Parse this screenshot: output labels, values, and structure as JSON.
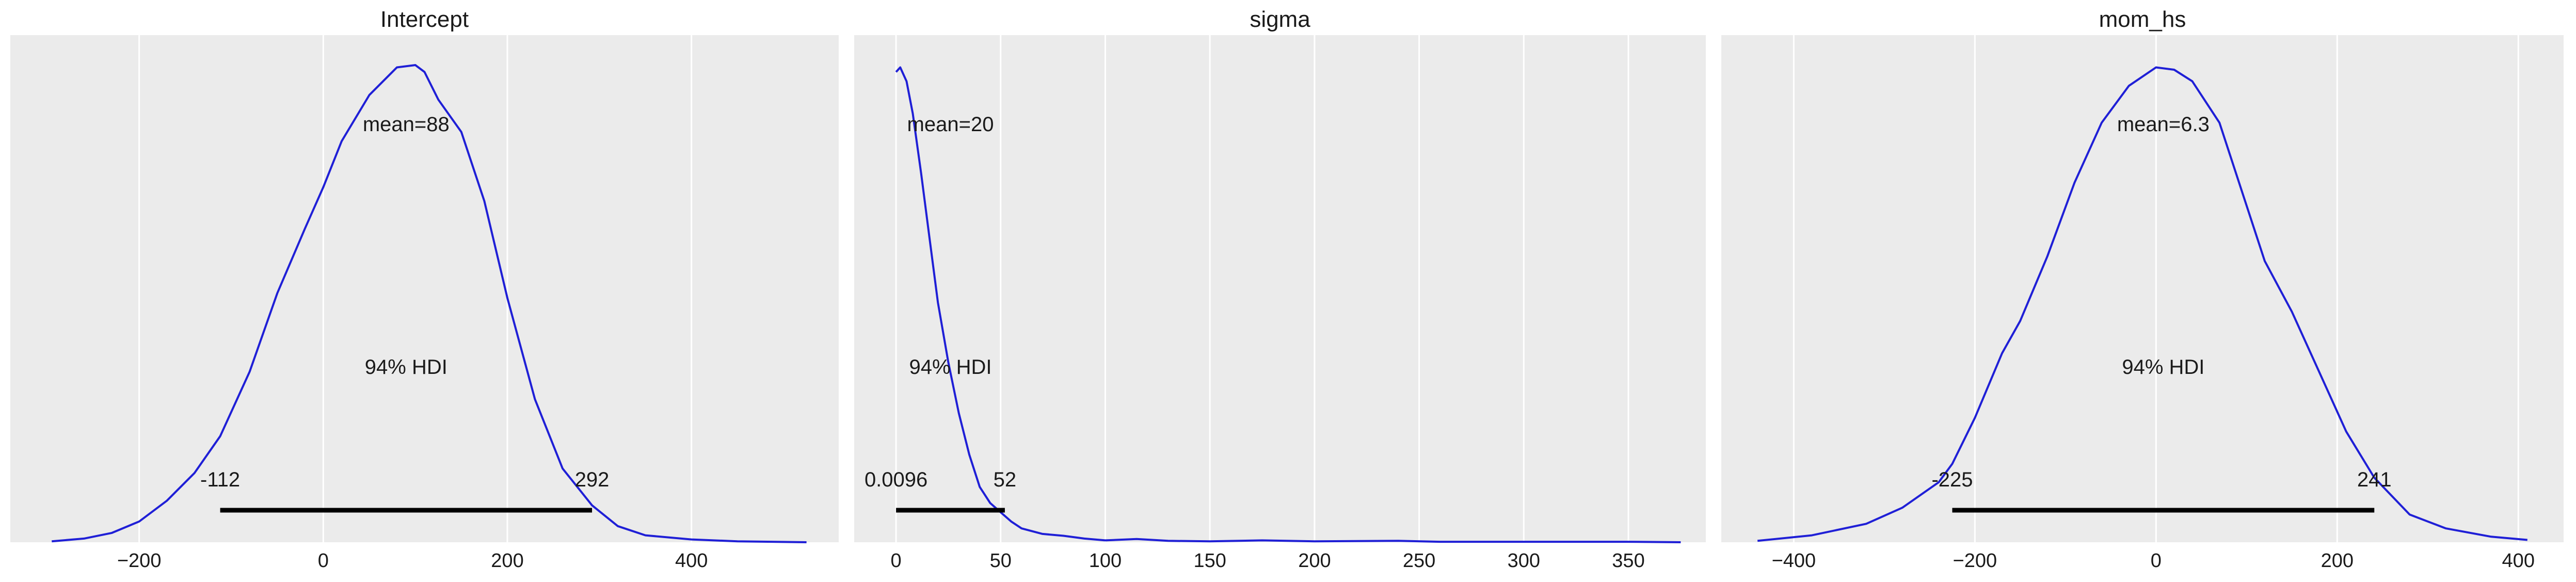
{
  "colors": {
    "panel_bg": "#ebebeb",
    "grid": "#ffffff",
    "density_line": "#1f1fd6",
    "hdi_bar": "#000000",
    "text": "#1a1a1a"
  },
  "chart_data": [
    {
      "type": "line",
      "title": "Intercept",
      "xlabel": "",
      "ylabel": "",
      "grid": true,
      "xlim": [
        -340,
        560
      ],
      "xticks": [
        -200,
        0,
        200,
        400
      ],
      "tick_labels": [
        "−200",
        "0",
        "200",
        "400"
      ],
      "mean_label": "mean=88",
      "hdi_label": "94% HDI",
      "hdi": [
        -112,
        292
      ],
      "hdi_low_label": "-112",
      "hdi_high_label": "292",
      "ylim": [
        0,
        1.1
      ],
      "density": {
        "x": [
          -295,
          -260,
          -230,
          -200,
          -170,
          -140,
          -112,
          -80,
          -50,
          -20,
          0,
          20,
          50,
          80,
          100,
          110,
          125,
          150,
          175,
          200,
          230,
          260,
          292,
          320,
          350,
          400,
          450,
          525
        ],
        "y": [
          0.002,
          0.008,
          0.02,
          0.045,
          0.09,
          0.15,
          0.23,
          0.37,
          0.54,
          0.68,
          0.77,
          0.87,
          0.97,
          1.03,
          1.035,
          1.02,
          0.96,
          0.89,
          0.74,
          0.53,
          0.31,
          0.16,
          0.08,
          0.035,
          0.015,
          0.006,
          0.002,
          0.0
        ]
      }
    },
    {
      "type": "line",
      "title": "sigma",
      "xlabel": "",
      "ylabel": "",
      "grid": true,
      "xlim": [
        -20,
        387
      ],
      "xticks": [
        0,
        50,
        100,
        150,
        200,
        250,
        300,
        350
      ],
      "tick_labels": [
        "0",
        "50",
        "100",
        "150",
        "200",
        "250",
        "300",
        "350"
      ],
      "mean_label": "mean=20",
      "hdi_label": "94% HDI",
      "hdi": [
        0.0096,
        52
      ],
      "hdi_low_label": "0.0096",
      "hdi_high_label": "52",
      "ylim": [
        0,
        1.1
      ],
      "density": {
        "x": [
          0,
          2,
          5,
          8,
          12,
          16,
          20,
          25,
          30,
          35,
          40,
          45,
          50,
          55,
          60,
          70,
          80,
          90,
          100,
          115,
          130,
          150,
          175,
          200,
          240,
          260,
          300,
          350,
          375
        ],
        "y": [
          1.02,
          1.03,
          1.0,
          0.93,
          0.8,
          0.66,
          0.52,
          0.39,
          0.28,
          0.19,
          0.12,
          0.085,
          0.065,
          0.045,
          0.03,
          0.018,
          0.014,
          0.008,
          0.004,
          0.007,
          0.003,
          0.002,
          0.004,
          0.002,
          0.003,
          0.001,
          0.001,
          0.001,
          0.0
        ]
      }
    },
    {
      "type": "line",
      "title": "mom_hs",
      "xlabel": "",
      "ylabel": "",
      "grid": true,
      "xlim": [
        -480,
        450
      ],
      "xticks": [
        -400,
        -200,
        0,
        200,
        400
      ],
      "tick_labels": [
        "−400",
        "−200",
        "0",
        "200",
        "400"
      ],
      "mean_label": "mean=6.3",
      "hdi_label": "94% HDI",
      "hdi": [
        -225,
        241
      ],
      "hdi_low_label": "-225",
      "hdi_high_label": "241",
      "ylim": [
        0,
        1.1
      ],
      "density": {
        "x": [
          -440,
          -380,
          -320,
          -280,
          -240,
          -225,
          -200,
          -170,
          -150,
          -120,
          -90,
          -60,
          -30,
          0,
          20,
          40,
          70,
          100,
          120,
          150,
          180,
          210,
          241,
          280,
          320,
          370,
          410
        ],
        "y": [
          0.003,
          0.015,
          0.04,
          0.075,
          0.13,
          0.17,
          0.27,
          0.41,
          0.48,
          0.62,
          0.78,
          0.91,
          0.99,
          1.03,
          1.025,
          1.0,
          0.91,
          0.73,
          0.61,
          0.5,
          0.37,
          0.24,
          0.14,
          0.06,
          0.03,
          0.012,
          0.005
        ]
      }
    }
  ]
}
